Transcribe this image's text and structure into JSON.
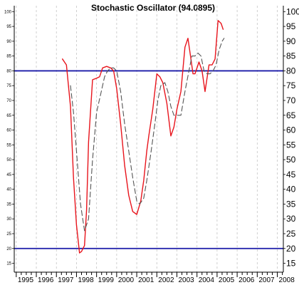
{
  "chart_data": {
    "type": "line",
    "title": "Stochastic Oscillator (94.0895)",
    "xlabel": "",
    "ylabel": "",
    "xlim": [
      1994.9,
      2008.3
    ],
    "ylim": [
      12,
      102
    ],
    "x_ticks": [
      "1995",
      "1996",
      "1997",
      "1998",
      "1999",
      "2000",
      "2001",
      "2002",
      "2003",
      "2004",
      "2005",
      "2006",
      "2007",
      "2008"
    ],
    "y_ticks_left": [
      15,
      20,
      25,
      30,
      35,
      40,
      45,
      50,
      55,
      60,
      65,
      70,
      75,
      80,
      85,
      90,
      95,
      100
    ],
    "y_ticks_right": [
      15,
      20,
      25,
      30,
      35,
      40,
      45,
      50,
      55,
      60,
      65,
      70,
      75,
      80,
      85,
      90,
      95,
      100
    ],
    "grid": {
      "vertical": true,
      "horizontal": false
    },
    "reference_lines": [
      {
        "value": 80,
        "color": "#1a1aa8"
      },
      {
        "value": 20,
        "color": "#1a1aa8"
      }
    ],
    "series": [
      {
        "color": "#e8141c",
        "style": "solid",
        "x": [
          1997.3,
          1997.5,
          1997.7,
          1997.85,
          1998.0,
          1998.15,
          1998.25,
          1998.4,
          1998.5,
          1998.6,
          1998.8,
          1999.0,
          1999.15,
          1999.3,
          1999.5,
          1999.7,
          1999.85,
          2000.0,
          2000.2,
          2000.4,
          2000.6,
          2000.8,
          2001.0,
          2001.2,
          2001.35,
          2001.5,
          2001.6,
          2001.8,
          2002.0,
          2002.15,
          2002.3,
          2002.5,
          2002.7,
          2002.85,
          2003.0,
          2003.2,
          2003.4,
          2003.55,
          2003.7,
          2003.8,
          2003.9,
          2004.1,
          2004.25,
          2004.4,
          2004.6,
          2004.75,
          2004.9,
          2005.05,
          2005.2,
          2005.3
        ],
        "values": [
          84,
          82,
          68,
          44,
          28,
          18.5,
          19,
          21,
          33,
          56,
          77,
          77.5,
          78,
          81,
          81.5,
          81,
          80,
          74,
          62,
          48,
          38,
          32.5,
          31.5,
          36,
          43,
          53,
          58,
          67,
          79,
          78,
          76,
          69,
          58,
          61,
          67,
          73,
          88,
          91,
          84,
          79,
          79,
          83,
          80,
          73,
          82,
          82,
          84,
          97,
          96,
          94
        ]
      },
      {
        "color": "#555555",
        "style": "dashed",
        "x": [
          1997.7,
          1997.85,
          1998.0,
          1998.2,
          1998.4,
          1998.6,
          1998.8,
          1999.0,
          1999.2,
          1999.4,
          1999.55,
          1999.7,
          1999.85,
          2000.0,
          2000.2,
          2000.4,
          2000.6,
          2000.8,
          2001.0,
          2001.15,
          2001.35,
          2001.5,
          2001.7,
          2001.9,
          2002.05,
          2002.2,
          2002.4,
          2002.55,
          2002.7,
          2002.85,
          2003.0,
          2003.2,
          2003.4,
          2003.6,
          2003.75,
          2003.9,
          2004.05,
          2004.2,
          2004.35,
          2004.5,
          2004.65,
          2004.8,
          2004.95,
          2005.1,
          2005.25,
          2005.35
        ],
        "values": [
          75,
          66,
          53,
          35,
          26,
          30,
          50,
          66,
          72,
          78,
          80,
          81,
          81,
          80,
          73,
          62,
          53,
          44,
          36,
          35,
          37,
          43,
          52,
          62,
          70,
          75,
          76,
          73,
          68,
          65,
          65,
          65,
          73,
          80,
          85,
          85,
          86,
          85,
          80,
          79,
          79,
          80,
          82,
          87,
          90,
          91
        ]
      }
    ]
  }
}
